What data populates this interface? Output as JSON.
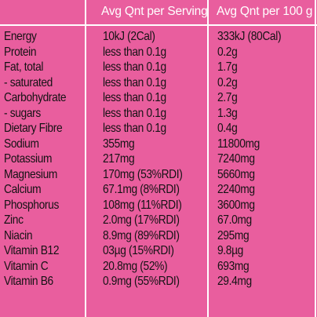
{
  "headers": {
    "name": "",
    "per_serving": "Avg Qnt per Serving",
    "per_100g": "Avg Qnt per 100 g"
  },
  "rows": [
    {
      "name": "Energy",
      "per_serving": "10kJ (2Cal)",
      "per_100g": "333kJ (80Cal)"
    },
    {
      "name": "Protein",
      "per_serving": "less than 0.1g",
      "per_100g": "0.2g"
    },
    {
      "name": "Fat, total",
      "per_serving": "less than 0.1g",
      "per_100g": "1.7g"
    },
    {
      "name": "- saturated",
      "per_serving": "less than 0.1g",
      "per_100g": "0.2g"
    },
    {
      "name": "Carbohydrate",
      "per_serving": "less than 0.1g",
      "per_100g": "2.7g"
    },
    {
      "name": "- sugars",
      "per_serving": "less than 0.1g",
      "per_100g": "1.3g"
    },
    {
      "name": "Dietary Fibre",
      "per_serving": "less than 0.1g",
      "per_100g": "0.4g"
    },
    {
      "name": "Sodium",
      "per_serving": "355mg",
      "per_100g": "11800mg"
    },
    {
      "name": "Potassium",
      "per_serving": "217mg",
      "per_100g": "7240mg"
    },
    {
      "name": "Magnesium",
      "per_serving": "170mg (53%RDI)",
      "per_100g": "5660mg"
    },
    {
      "name": "Calcium",
      "per_serving": "67.1mg (8%RDI)",
      "per_100g": "2240mg"
    },
    {
      "name": "Phosphorus",
      "per_serving": "108mg (11%RDI)",
      "per_100g": "3600mg"
    },
    {
      "name": "Zinc",
      "per_serving": "2.0mg (17%RDI)",
      "per_100g": "67.0mg"
    },
    {
      "name": "Niacin",
      "per_serving": "8.9mg (89%RDI)",
      "per_100g": "295mg"
    },
    {
      "name": "Vitamin B12",
      "per_serving": "03µg (15%RDI)",
      "per_100g": "9.8µg"
    },
    {
      "name": "Vitamin C",
      "per_serving": "20.8mg (52%)",
      "per_100g": "693mg"
    },
    {
      "name": "Vitamin B6",
      "per_serving": "0.9mg (55%RDI)",
      "per_100g": "29.4mg"
    }
  ],
  "colors": {
    "background": "#e95e9e",
    "grid": "#ffffff",
    "text": "#141214"
  }
}
